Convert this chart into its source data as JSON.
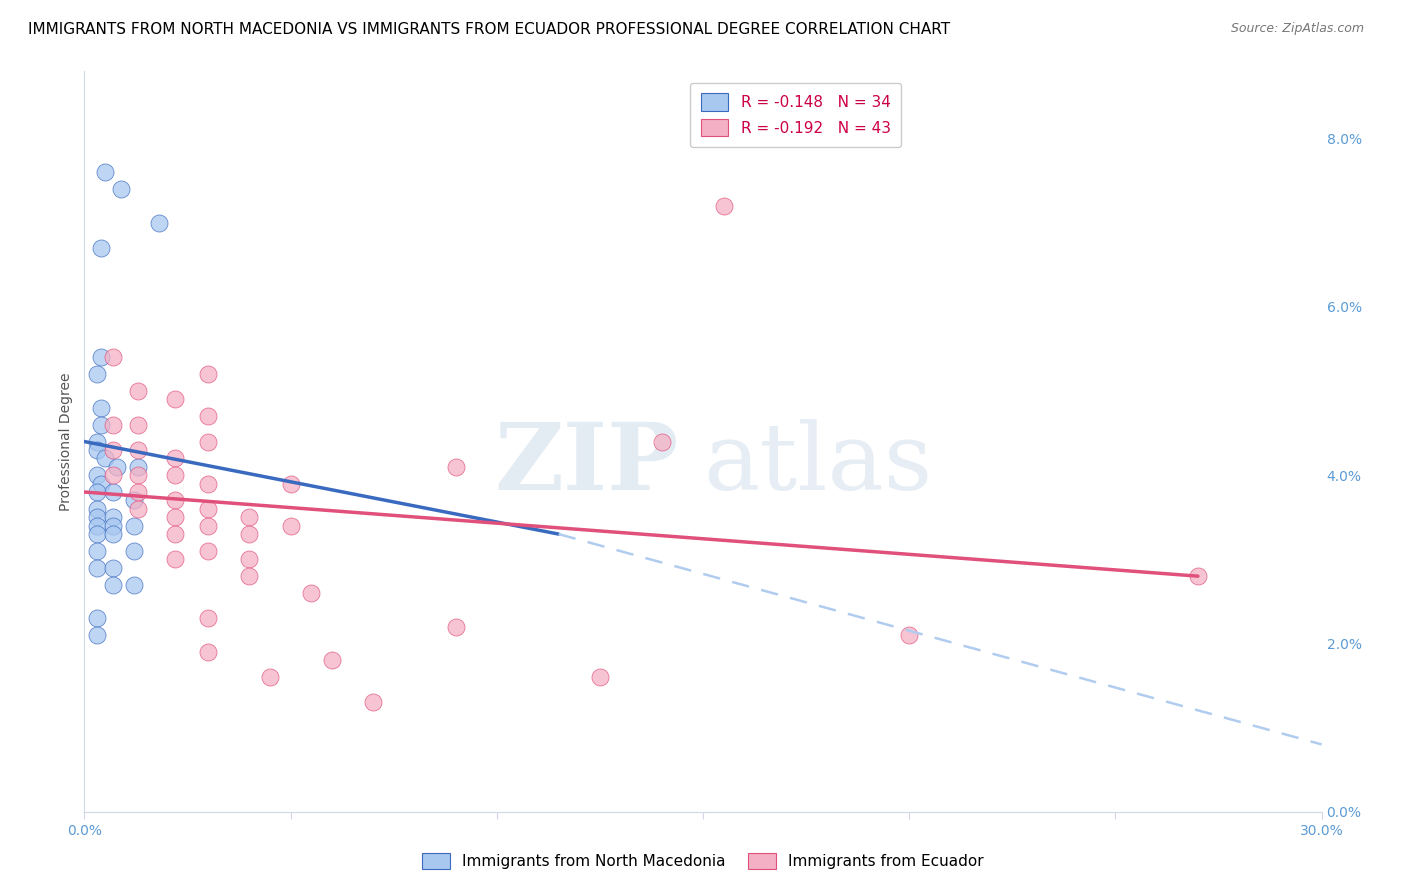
{
  "title": "IMMIGRANTS FROM NORTH MACEDONIA VS IMMIGRANTS FROM ECUADOR PROFESSIONAL DEGREE CORRELATION CHART",
  "source": "Source: ZipAtlas.com",
  "xlabel_ticks_vals": [
    0.0,
    0.05,
    0.1,
    0.15,
    0.2,
    0.25,
    0.3
  ],
  "xlabel_ticks_labels": [
    "0.0%",
    "",
    "",
    "",
    "",
    "",
    "30.0%"
  ],
  "ylabel_ticks_vals": [
    0.0,
    0.02,
    0.04,
    0.06,
    0.08
  ],
  "ylabel_ticks_labels": [
    "0.0%",
    "2.0%",
    "4.0%",
    "6.0%",
    "8.0%"
  ],
  "ylabel_label": "Professional Degree",
  "xlim": [
    0.0,
    0.3
  ],
  "ylim": [
    0.0,
    0.088
  ],
  "watermark": "ZIPatlas",
  "legend": {
    "blue_R": "R = -0.148",
    "blue_N": "N = 34",
    "pink_R": "R = -0.192",
    "pink_N": "N = 43"
  },
  "blue_scatter": [
    [
      0.005,
      0.076
    ],
    [
      0.009,
      0.074
    ],
    [
      0.018,
      0.07
    ],
    [
      0.004,
      0.067
    ],
    [
      0.004,
      0.054
    ],
    [
      0.003,
      0.052
    ],
    [
      0.004,
      0.048
    ],
    [
      0.004,
      0.046
    ],
    [
      0.003,
      0.044
    ],
    [
      0.003,
      0.043
    ],
    [
      0.005,
      0.042
    ],
    [
      0.008,
      0.041
    ],
    [
      0.013,
      0.041
    ],
    [
      0.003,
      0.04
    ],
    [
      0.004,
      0.039
    ],
    [
      0.003,
      0.038
    ],
    [
      0.007,
      0.038
    ],
    [
      0.012,
      0.037
    ],
    [
      0.003,
      0.036
    ],
    [
      0.003,
      0.035
    ],
    [
      0.007,
      0.035
    ],
    [
      0.003,
      0.034
    ],
    [
      0.007,
      0.034
    ],
    [
      0.012,
      0.034
    ],
    [
      0.003,
      0.033
    ],
    [
      0.007,
      0.033
    ],
    [
      0.003,
      0.031
    ],
    [
      0.012,
      0.031
    ],
    [
      0.003,
      0.029
    ],
    [
      0.007,
      0.029
    ],
    [
      0.007,
      0.027
    ],
    [
      0.012,
      0.027
    ],
    [
      0.003,
      0.023
    ],
    [
      0.003,
      0.021
    ]
  ],
  "pink_scatter": [
    [
      0.155,
      0.072
    ],
    [
      0.007,
      0.054
    ],
    [
      0.03,
      0.052
    ],
    [
      0.013,
      0.05
    ],
    [
      0.022,
      0.049
    ],
    [
      0.03,
      0.047
    ],
    [
      0.007,
      0.046
    ],
    [
      0.013,
      0.046
    ],
    [
      0.03,
      0.044
    ],
    [
      0.14,
      0.044
    ],
    [
      0.007,
      0.043
    ],
    [
      0.013,
      0.043
    ],
    [
      0.022,
      0.042
    ],
    [
      0.09,
      0.041
    ],
    [
      0.007,
      0.04
    ],
    [
      0.013,
      0.04
    ],
    [
      0.022,
      0.04
    ],
    [
      0.03,
      0.039
    ],
    [
      0.05,
      0.039
    ],
    [
      0.013,
      0.038
    ],
    [
      0.022,
      0.037
    ],
    [
      0.013,
      0.036
    ],
    [
      0.03,
      0.036
    ],
    [
      0.022,
      0.035
    ],
    [
      0.04,
      0.035
    ],
    [
      0.03,
      0.034
    ],
    [
      0.05,
      0.034
    ],
    [
      0.022,
      0.033
    ],
    [
      0.04,
      0.033
    ],
    [
      0.03,
      0.031
    ],
    [
      0.04,
      0.03
    ],
    [
      0.022,
      0.03
    ],
    [
      0.04,
      0.028
    ],
    [
      0.055,
      0.026
    ],
    [
      0.03,
      0.023
    ],
    [
      0.09,
      0.022
    ],
    [
      0.03,
      0.019
    ],
    [
      0.06,
      0.018
    ],
    [
      0.045,
      0.016
    ],
    [
      0.125,
      0.016
    ],
    [
      0.07,
      0.013
    ],
    [
      0.27,
      0.028
    ],
    [
      0.2,
      0.021
    ]
  ],
  "blue_line": {
    "x0": 0.0,
    "y0": 0.044,
    "x1": 0.115,
    "y1": 0.033
  },
  "pink_line": {
    "x0": 0.0,
    "y0": 0.038,
    "x1": 0.27,
    "y1": 0.028
  },
  "blue_dash_line": {
    "x0": 0.115,
    "y0": 0.033,
    "x1": 0.3,
    "y1": 0.008
  },
  "blue_color": "#a8c8f0",
  "blue_line_color": "#3a6abf",
  "pink_color": "#f4b0c4",
  "pink_line_color": "#e0507a",
  "dash_color": "#b0ccee",
  "grid_color": "#d0d8e8",
  "title_fontsize": 11,
  "axis_label_fontsize": 10,
  "tick_fontsize": 10,
  "legend_fontsize": 11,
  "right_tick_color": "#5b9bd5",
  "bottom_tick_color": "#5b9bd5"
}
